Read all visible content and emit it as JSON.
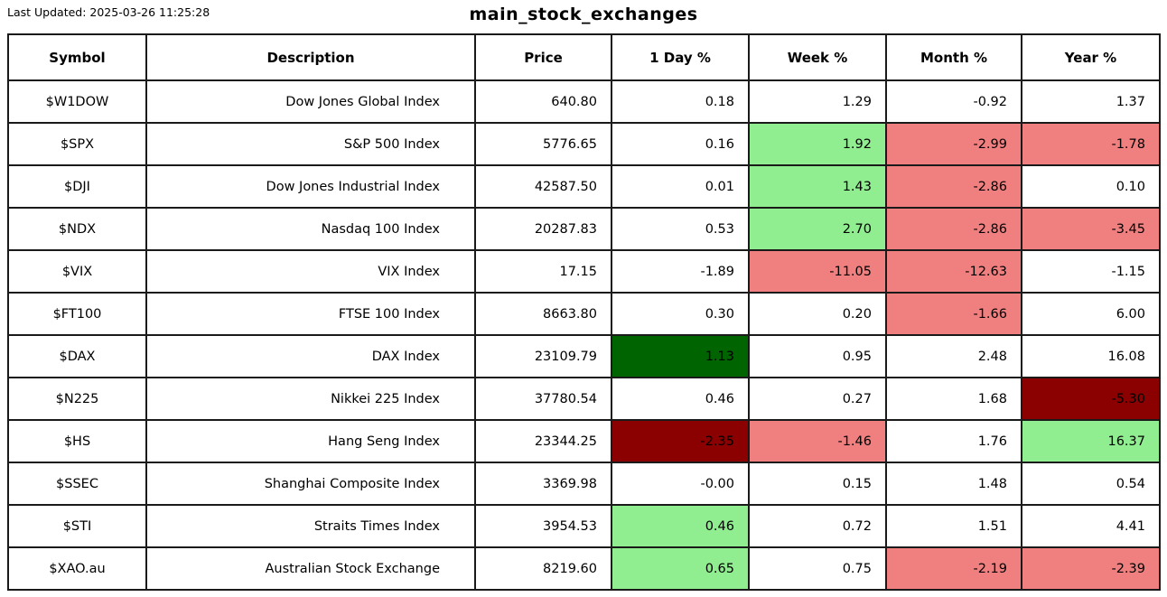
{
  "header": {
    "last_updated": "Last Updated: 2025-03-26 11:25:28",
    "title": "main_stock_exchanges"
  },
  "table": {
    "columns": [
      "Symbol",
      "Description",
      "Price",
      "1 Day %",
      "Week %",
      "Month %",
      "Year %"
    ],
    "colors": {
      "lg": "#90EE90",
      "dg": "#006400",
      "lr": "#F08080",
      "dr": "#8B0000"
    },
    "rows": [
      {
        "symbol": "$W1DOW",
        "description": "Dow Jones Global Index",
        "price": "640.80",
        "day": "0.18",
        "week": "1.29",
        "month": "-0.92",
        "year": "1.37",
        "colors": {
          "day": "",
          "week": "",
          "month": "",
          "year": ""
        }
      },
      {
        "symbol": "$SPX",
        "description": "S&P 500 Index",
        "price": "5776.65",
        "day": "0.16",
        "week": "1.92",
        "month": "-2.99",
        "year": "-1.78",
        "colors": {
          "day": "",
          "week": "lg",
          "month": "lr",
          "year": "lr"
        }
      },
      {
        "symbol": "$DJI",
        "description": "Dow Jones Industrial Index",
        "price": "42587.50",
        "day": "0.01",
        "week": "1.43",
        "month": "-2.86",
        "year": "0.10",
        "colors": {
          "day": "",
          "week": "lg",
          "month": "lr",
          "year": ""
        }
      },
      {
        "symbol": "$NDX",
        "description": "Nasdaq 100 Index",
        "price": "20287.83",
        "day": "0.53",
        "week": "2.70",
        "month": "-2.86",
        "year": "-3.45",
        "colors": {
          "day": "",
          "week": "lg",
          "month": "lr",
          "year": "lr"
        }
      },
      {
        "symbol": "$VIX",
        "description": "VIX Index",
        "price": "17.15",
        "day": "-1.89",
        "week": "-11.05",
        "month": "-12.63",
        "year": "-1.15",
        "colors": {
          "day": "",
          "week": "lr",
          "month": "lr",
          "year": ""
        }
      },
      {
        "symbol": "$FT100",
        "description": "FTSE 100 Index",
        "price": "8663.80",
        "day": "0.30",
        "week": "0.20",
        "month": "-1.66",
        "year": "6.00",
        "colors": {
          "day": "",
          "week": "",
          "month": "lr",
          "year": ""
        }
      },
      {
        "symbol": "$DAX",
        "description": "DAX Index",
        "price": "23109.79",
        "day": "1.13",
        "week": "0.95",
        "month": "2.48",
        "year": "16.08",
        "colors": {
          "day": "dg",
          "week": "",
          "month": "",
          "year": ""
        }
      },
      {
        "symbol": "$N225",
        "description": "Nikkei 225 Index",
        "price": "37780.54",
        "day": "0.46",
        "week": "0.27",
        "month": "1.68",
        "year": "-5.30",
        "colors": {
          "day": "",
          "week": "",
          "month": "",
          "year": "dr"
        }
      },
      {
        "symbol": "$HS",
        "description": "Hang Seng Index",
        "price": "23344.25",
        "day": "-2.35",
        "week": "-1.46",
        "month": "1.76",
        "year": "16.37",
        "colors": {
          "day": "dr",
          "week": "lr",
          "month": "",
          "year": "lg"
        }
      },
      {
        "symbol": "$SSEC",
        "description": "Shanghai Composite Index",
        "price": "3369.98",
        "day": "-0.00",
        "week": "0.15",
        "month": "1.48",
        "year": "0.54",
        "colors": {
          "day": "",
          "week": "",
          "month": "",
          "year": ""
        }
      },
      {
        "symbol": "$STI",
        "description": "Straits Times Index",
        "price": "3954.53",
        "day": "0.46",
        "week": "0.72",
        "month": "1.51",
        "year": "4.41",
        "colors": {
          "day": "lg",
          "week": "",
          "month": "",
          "year": ""
        }
      },
      {
        "symbol": "$XAO.au",
        "description": "Australian Stock Exchange",
        "price": "8219.60",
        "day": "0.65",
        "week": "0.75",
        "month": "-2.19",
        "year": "-2.39",
        "colors": {
          "day": "lg",
          "week": "",
          "month": "lr",
          "year": "lr"
        }
      }
    ]
  }
}
